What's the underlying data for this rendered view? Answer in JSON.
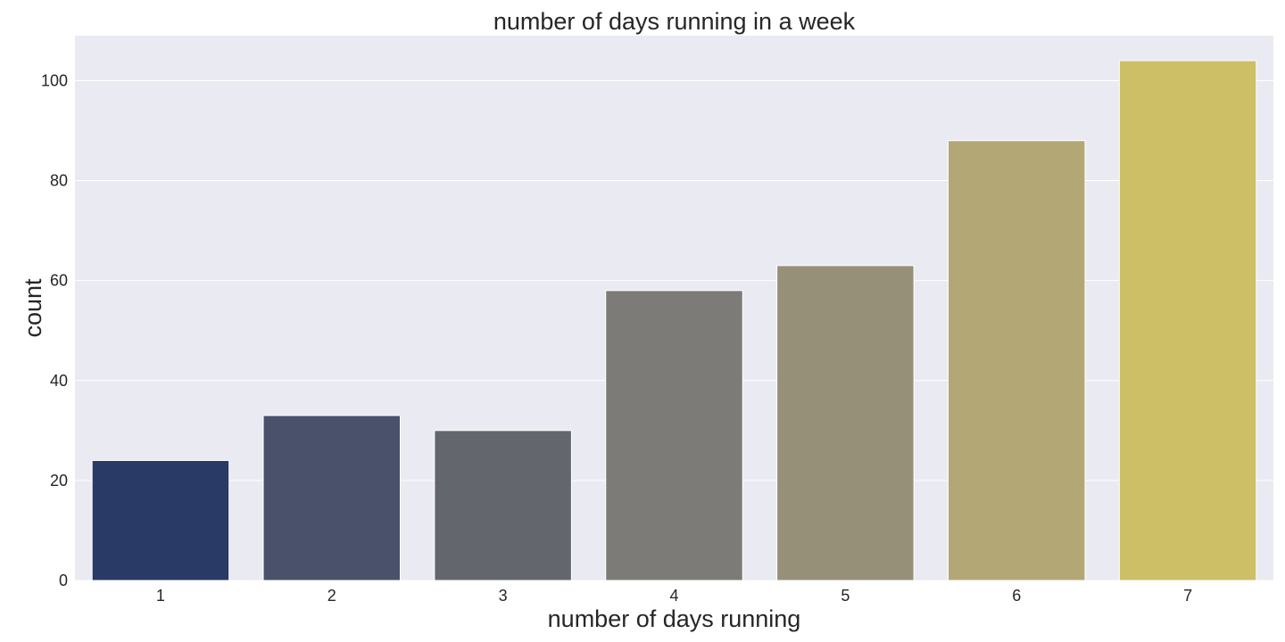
{
  "chart_data": {
    "type": "bar",
    "title": "number of days running in a week",
    "xlabel": "number of days running",
    "ylabel": "count",
    "categories": [
      "1",
      "2",
      "3",
      "4",
      "5",
      "6",
      "7"
    ],
    "values": [
      24,
      33,
      30,
      58,
      63,
      88,
      104
    ],
    "ylim": [
      0,
      109
    ],
    "yticks": [
      0,
      20,
      40,
      60,
      80,
      100
    ],
    "grid": true,
    "background_color": "#eaeaf2",
    "bar_colors": [
      "#283a65",
      "#49516b",
      "#64666e",
      "#7c7b78",
      "#979079",
      "#b3a775",
      "#cdbf66"
    ]
  }
}
